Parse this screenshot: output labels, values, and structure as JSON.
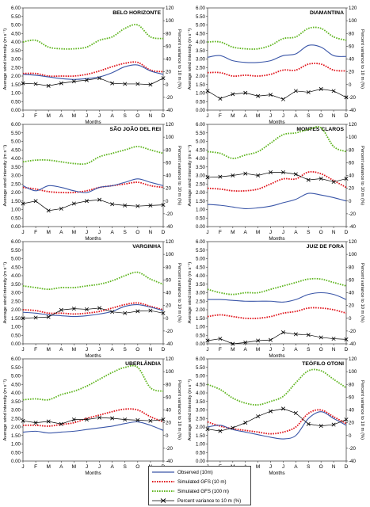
{
  "months": [
    "J",
    "F",
    "M",
    "A",
    "M",
    "J",
    "J",
    "A",
    "S",
    "O",
    "N",
    "D"
  ],
  "colors": {
    "observed": "#3a56a8",
    "gfs10": "#e0141b",
    "gfs100": "#5fb51f",
    "variance": "#000000"
  },
  "legend": {
    "observed": "Observed (10m)",
    "gfs10": "Simulated GFS (10 m)",
    "gfs100": "Simulated GFS (100 m)",
    "variance": "Percent variance to 10 m (%)"
  },
  "chart_data": [
    {
      "type": "line",
      "title": "BELO HORIZONTE",
      "xlabel": "Months",
      "ylabel": "Average wind intensity (m s⁻¹)",
      "ylabel_right": "Percent variance to 10 m (%)",
      "ylim": [
        0,
        6
      ],
      "y2lim": [
        -40,
        120
      ],
      "yticks": [
        "0.00",
        "0.50",
        "1.00",
        "1.50",
        "2.00",
        "2.50",
        "3.00",
        "3.50",
        "4.00",
        "4.50",
        "5.00",
        "5.50",
        "6.00"
      ],
      "y2ticks": [
        -40,
        -20,
        0,
        20,
        40,
        60,
        80,
        100,
        120
      ],
      "categories": [
        "J",
        "F",
        "M",
        "A",
        "M",
        "J",
        "J",
        "A",
        "S",
        "O",
        "N",
        "D"
      ],
      "series": [
        {
          "name": "Observed (10m)",
          "axis": "left",
          "values": [
            2.1,
            2.05,
            1.95,
            1.85,
            1.8,
            1.85,
            1.95,
            2.2,
            2.55,
            2.65,
            2.3,
            2.1
          ]
        },
        {
          "name": "Simulated GFS (10 m)",
          "axis": "left",
          "values": [
            2.15,
            2.15,
            2.0,
            2.0,
            2.0,
            2.1,
            2.3,
            2.55,
            2.75,
            2.8,
            2.35,
            2.25
          ]
        },
        {
          "name": "Simulated GFS (100 m)",
          "axis": "left",
          "values": [
            4.0,
            4.1,
            3.7,
            3.6,
            3.6,
            3.7,
            4.1,
            4.3,
            4.8,
            5.0,
            4.3,
            4.2
          ]
        },
        {
          "name": "Percent variance to 10 m (%)",
          "axis": "right",
          "values": [
            2,
            1,
            -2,
            2,
            5,
            7,
            10,
            2,
            1,
            1,
            0,
            10
          ]
        }
      ]
    },
    {
      "type": "line",
      "title": "DIAMANTINA",
      "xlabel": "Months",
      "ylabel": "Average wind intensity (m s⁻¹)",
      "ylabel_right": "Percent variance to 10 m (%)",
      "ylim": [
        0,
        6
      ],
      "y2lim": [
        -40,
        120
      ],
      "yticks": [
        "0.00",
        "0.50",
        "1.00",
        "1.50",
        "2.00",
        "2.50",
        "3.00",
        "3.50",
        "4.00",
        "4.50",
        "5.00",
        "5.50",
        "6.00"
      ],
      "y2ticks": [
        -40,
        -20,
        0,
        20,
        40,
        60,
        80,
        100,
        120
      ],
      "categories": [
        "J",
        "F",
        "M",
        "A",
        "M",
        "J",
        "J",
        "A",
        "S",
        "O",
        "N",
        "D"
      ],
      "series": [
        {
          "name": "Observed (10m)",
          "axis": "left",
          "values": [
            3.1,
            3.2,
            2.9,
            2.8,
            2.8,
            2.9,
            3.2,
            3.3,
            3.8,
            3.7,
            3.2,
            3.15
          ]
        },
        {
          "name": "Simulated GFS (10 m)",
          "axis": "left",
          "values": [
            2.2,
            2.2,
            2.0,
            2.05,
            2.0,
            2.1,
            2.35,
            2.35,
            2.7,
            2.7,
            2.35,
            2.3
          ]
        },
        {
          "name": "Simulated GFS (100 m)",
          "axis": "left",
          "values": [
            4.0,
            4.0,
            3.7,
            3.6,
            3.6,
            3.8,
            4.2,
            4.3,
            4.8,
            4.8,
            4.3,
            4.1
          ]
        },
        {
          "name": "Percent variance to 10 m (%)",
          "axis": "right",
          "values": [
            -10,
            -22,
            -15,
            -13,
            -18,
            -16,
            -23,
            -10,
            -12,
            -7,
            -10,
            -20
          ]
        }
      ]
    },
    {
      "type": "line",
      "title": "SÃO JOÃO DEL REI",
      "xlabel": "Months",
      "ylabel": "Average wind intensity (m s⁻¹)",
      "ylabel_right": "Percent variance to 10 m (%)",
      "ylim": [
        0,
        6
      ],
      "y2lim": [
        -40,
        120
      ],
      "yticks": [
        "0.00",
        "0.50",
        "1.00",
        "1.50",
        "2.00",
        "2.50",
        "3.00",
        "3.50",
        "4.00",
        "4.50",
        "5.00",
        "5.50",
        "6.00"
      ],
      "y2ticks": [
        -40,
        -20,
        0,
        20,
        40,
        60,
        80,
        100,
        120
      ],
      "categories": [
        "J",
        "F",
        "M",
        "A",
        "M",
        "J",
        "J",
        "A",
        "S",
        "O",
        "N",
        "D"
      ],
      "series": [
        {
          "name": "Observed (10m)",
          "axis": "left",
          "values": [
            2.4,
            2.1,
            2.4,
            2.3,
            2.1,
            2.0,
            2.3,
            2.4,
            2.6,
            2.8,
            2.6,
            2.4
          ]
        },
        {
          "name": "Simulated GFS (10 m)",
          "axis": "left",
          "values": [
            2.3,
            2.2,
            2.05,
            2.0,
            2.0,
            2.1,
            2.3,
            2.4,
            2.5,
            2.6,
            2.4,
            2.3
          ]
        },
        {
          "name": "Simulated GFS (100 m)",
          "axis": "left",
          "values": [
            3.8,
            3.9,
            3.9,
            3.8,
            3.7,
            3.7,
            4.1,
            4.3,
            4.5,
            4.7,
            4.5,
            4.3
          ]
        },
        {
          "name": "Percent variance to 10 m (%)",
          "axis": "right",
          "values": [
            -4,
            0,
            -15,
            -12,
            -4,
            0,
            2,
            -5,
            -7,
            -8,
            -7,
            -6
          ]
        }
      ]
    },
    {
      "type": "line",
      "title": "MONTES CLAROS",
      "xlabel": "Months",
      "ylabel": "Average wind intensity (m s⁻¹)",
      "ylabel_right": "Percent variance to 10 m (%)",
      "ylim": [
        0,
        6
      ],
      "y2lim": [
        -40,
        120
      ],
      "yticks": [
        "0.00",
        "0.50",
        "1.00",
        "1.50",
        "2.00",
        "2.50",
        "3.00",
        "3.50",
        "4.00",
        "4.50",
        "5.00",
        "5.50",
        "6.00"
      ],
      "y2ticks": [
        -40,
        -20,
        0,
        20,
        40,
        60,
        80,
        100,
        120
      ],
      "categories": [
        "J",
        "F",
        "M",
        "A",
        "M",
        "J",
        "J",
        "A",
        "S",
        "O",
        "N",
        "D"
      ],
      "series": [
        {
          "name": "Observed (10m)",
          "axis": "left",
          "values": [
            1.3,
            1.25,
            1.15,
            1.05,
            1.1,
            1.2,
            1.4,
            1.6,
            1.95,
            1.85,
            1.7,
            1.5
          ]
        },
        {
          "name": "Simulated GFS (10 m)",
          "axis": "left",
          "values": [
            2.25,
            2.2,
            2.1,
            2.1,
            2.2,
            2.5,
            2.8,
            2.8,
            3.2,
            3.1,
            2.7,
            2.3
          ]
        },
        {
          "name": "Simulated GFS (100 m)",
          "axis": "left",
          "values": [
            4.4,
            4.3,
            4.0,
            4.2,
            4.4,
            4.9,
            5.4,
            5.5,
            5.7,
            5.8,
            4.7,
            4.4
          ]
        },
        {
          "name": "Percent variance to 10 m (%)",
          "axis": "right",
          "values": [
            37,
            38,
            40,
            43,
            40,
            45,
            45,
            42,
            33,
            35,
            30,
            35
          ]
        }
      ]
    },
    {
      "type": "line",
      "title": "VARGINHA",
      "xlabel": "Months",
      "ylabel": "Average wind intensity (m s⁻¹)",
      "ylabel_right": "Percent variance to 10 m (%)",
      "ylim": [
        0,
        6
      ],
      "y2lim": [
        -40,
        120
      ],
      "yticks": [
        "0.00",
        "0.50",
        "1.00",
        "1.50",
        "2.00",
        "2.50",
        "3.00",
        "3.50",
        "4.00",
        "4.50",
        "5.00",
        "5.50",
        "6.00"
      ],
      "y2ticks": [
        -40,
        -20,
        0,
        20,
        40,
        60,
        80,
        100,
        120
      ],
      "categories": [
        "J",
        "F",
        "M",
        "A",
        "M",
        "J",
        "J",
        "A",
        "S",
        "O",
        "N",
        "D"
      ],
      "series": [
        {
          "name": "Observed (10m)",
          "axis": "left",
          "values": [
            1.85,
            1.8,
            1.7,
            1.65,
            1.6,
            1.65,
            1.75,
            1.9,
            2.2,
            2.3,
            2.15,
            1.95
          ]
        },
        {
          "name": "Simulated GFS (10 m)",
          "axis": "left",
          "values": [
            2.0,
            1.95,
            1.8,
            1.8,
            1.75,
            1.8,
            1.9,
            2.1,
            2.3,
            2.4,
            2.2,
            2.0
          ]
        },
        {
          "name": "Simulated GFS (100 m)",
          "axis": "left",
          "values": [
            3.4,
            3.3,
            3.2,
            3.3,
            3.3,
            3.4,
            3.5,
            3.7,
            4.0,
            4.2,
            3.8,
            3.5
          ]
        },
        {
          "name": "Percent variance to 10 m (%)",
          "axis": "right",
          "values": [
            0,
            1,
            2,
            13,
            15,
            14,
            16,
            10,
            8,
            11,
            12,
            8
          ]
        }
      ]
    },
    {
      "type": "line",
      "title": "JUIZ DE FORA",
      "xlabel": "Months",
      "ylabel": "Average wind intensity (m s⁻¹)",
      "ylabel_right": "Percent variance to 10 m (%)",
      "ylim": [
        0,
        6
      ],
      "y2lim": [
        -40,
        120
      ],
      "yticks": [
        "0.00",
        "0.50",
        "1.00",
        "1.50",
        "2.00",
        "2.50",
        "3.00",
        "3.50",
        "4.00",
        "4.50",
        "5.00",
        "5.50",
        "6.00"
      ],
      "y2ticks": [
        -40,
        -20,
        0,
        20,
        40,
        60,
        80,
        100,
        120
      ],
      "categories": [
        "J",
        "F",
        "M",
        "A",
        "M",
        "J",
        "J",
        "A",
        "S",
        "O",
        "N",
        "D"
      ],
      "series": [
        {
          "name": "Observed (10m)",
          "axis": "left",
          "values": [
            2.6,
            2.6,
            2.55,
            2.5,
            2.5,
            2.5,
            2.45,
            2.6,
            2.9,
            3.0,
            2.9,
            2.6
          ]
        },
        {
          "name": "Simulated GFS (10 m)",
          "axis": "left",
          "values": [
            1.6,
            1.7,
            1.6,
            1.5,
            1.5,
            1.6,
            1.8,
            1.9,
            2.1,
            2.1,
            2.0,
            1.8
          ]
        },
        {
          "name": "Simulated GFS (100 m)",
          "axis": "left",
          "values": [
            3.2,
            3.0,
            2.9,
            3.0,
            3.0,
            3.2,
            3.4,
            3.6,
            3.8,
            3.8,
            3.6,
            3.4
          ]
        },
        {
          "name": "Percent variance to 10 m (%)",
          "axis": "right",
          "values": [
            -35,
            -32,
            -40,
            -38,
            -35,
            -34,
            -22,
            -25,
            -26,
            -30,
            -32,
            -33
          ]
        }
      ]
    },
    {
      "type": "line",
      "title": "UBERLÂNDIA",
      "xlabel": "Months",
      "ylabel": "Average wind intensity (m s⁻¹)",
      "ylabel_right": "Percent variance to 10 m (%)",
      "ylim": [
        0,
        6
      ],
      "y2lim": [
        -40,
        120
      ],
      "yticks": [
        "0.00",
        "0.50",
        "1.00",
        "1.50",
        "2.00",
        "2.50",
        "3.00",
        "3.50",
        "4.00",
        "4.50",
        "5.00",
        "5.50",
        "6.00"
      ],
      "y2ticks": [
        -40,
        -20,
        0,
        20,
        40,
        60,
        80,
        100,
        120
      ],
      "categories": [
        "J",
        "F",
        "M",
        "A",
        "M",
        "J",
        "J",
        "A",
        "S",
        "O",
        "N",
        "D"
      ],
      "series": [
        {
          "name": "Observed (10m)",
          "axis": "left",
          "values": [
            1.7,
            1.75,
            1.65,
            1.7,
            1.75,
            1.85,
            1.95,
            2.05,
            2.2,
            2.3,
            2.1,
            1.8
          ]
        },
        {
          "name": "Simulated GFS (10 m)",
          "axis": "left",
          "values": [
            2.1,
            2.1,
            2.05,
            2.15,
            2.25,
            2.5,
            2.7,
            2.9,
            3.05,
            3.0,
            2.6,
            2.3
          ]
        },
        {
          "name": "Simulated GFS (100 m)",
          "axis": "left",
          "values": [
            3.6,
            3.65,
            3.6,
            3.9,
            4.1,
            4.4,
            4.8,
            5.2,
            5.5,
            5.5,
            4.3,
            4.1
          ]
        },
        {
          "name": "Percent variance to 10 m (%)",
          "axis": "right",
          "values": [
            23,
            20,
            22,
            18,
            25,
            25,
            28,
            27,
            25,
            24,
            23,
            25
          ]
        }
      ]
    },
    {
      "type": "line",
      "title": "TEÓFILO OTONI",
      "xlabel": "Months",
      "ylabel": "Average wind intensity (m s⁻¹)",
      "ylabel_right": "Percent variance to 10 m (%)",
      "ylim": [
        0,
        6
      ],
      "y2lim": [
        -40,
        120
      ],
      "yticks": [
        "0.00",
        "0.50",
        "1.00",
        "1.50",
        "2.00",
        "2.50",
        "3.00",
        "3.50",
        "4.00",
        "4.50",
        "5.00",
        "5.50",
        "6.00"
      ],
      "y2ticks": [
        -40,
        -20,
        0,
        20,
        40,
        60,
        80,
        100,
        120
      ],
      "categories": [
        "J",
        "F",
        "M",
        "A",
        "M",
        "J",
        "J",
        "A",
        "S",
        "O",
        "N",
        "D"
      ],
      "series": [
        {
          "name": "Observed (10m)",
          "axis": "left",
          "values": [
            2.0,
            2.1,
            1.85,
            1.7,
            1.55,
            1.4,
            1.3,
            1.5,
            2.5,
            2.9,
            2.5,
            2.1
          ]
        },
        {
          "name": "Simulated GFS (10 m)",
          "axis": "left",
          "values": [
            2.3,
            2.05,
            1.9,
            1.8,
            1.7,
            1.6,
            1.7,
            2.0,
            2.8,
            3.0,
            2.6,
            2.2
          ]
        },
        {
          "name": "Simulated GFS (100 m)",
          "axis": "left",
          "values": [
            4.5,
            4.2,
            3.7,
            3.4,
            3.3,
            3.5,
            3.8,
            4.6,
            5.3,
            5.3,
            4.8,
            4.3
          ]
        },
        {
          "name": "Percent variance to 10 m (%)",
          "axis": "right",
          "values": [
            10,
            7,
            12,
            20,
            30,
            38,
            42,
            35,
            18,
            15,
            17,
            25
          ]
        }
      ]
    }
  ]
}
